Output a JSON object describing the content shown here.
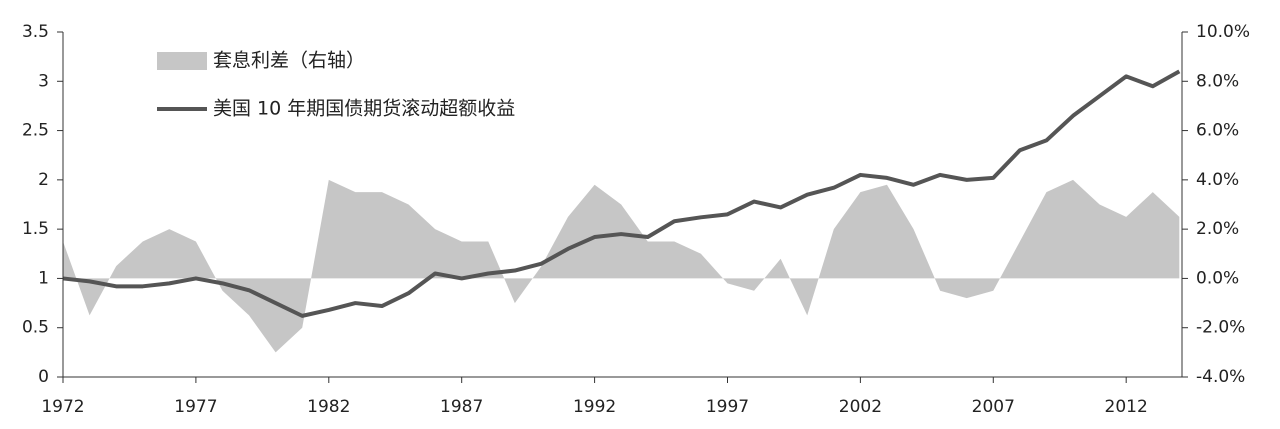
{
  "chart_data": {
    "type": "line",
    "x": [
      1972,
      1973,
      1974,
      1975,
      1976,
      1977,
      1978,
      1979,
      1980,
      1981,
      1982,
      1983,
      1984,
      1985,
      1986,
      1987,
      1988,
      1989,
      1990,
      1991,
      1992,
      1993,
      1994,
      1995,
      1996,
      1997,
      1998,
      1999,
      2000,
      2001,
      2002,
      2003,
      2004,
      2005,
      2006,
      2007,
      2008,
      2009,
      2010,
      2011,
      2012,
      2013,
      2014
    ],
    "xlim": [
      1972,
      2014.1
    ],
    "xticks": [
      1972,
      1977,
      1982,
      1987,
      1992,
      1997,
      2002,
      2007,
      2012
    ],
    "ylim": [
      0,
      3.5
    ],
    "yticks": [
      0,
      0.5,
      1,
      1.5,
      2,
      2.5,
      3,
      3.5
    ],
    "y2lim": [
      -4,
      10
    ],
    "y2ticks": [
      {
        "value": -4,
        "label": "-4.0%"
      },
      {
        "value": -2,
        "label": "-2.0%"
      },
      {
        "value": 0,
        "label": "0.0%"
      },
      {
        "value": 2,
        "label": "2.0%"
      },
      {
        "value": 4,
        "label": "4.0%"
      },
      {
        "value": 6,
        "label": "6.0%"
      },
      {
        "value": 8,
        "label": "8.0%"
      },
      {
        "value": 10,
        "label": "10.0%"
      }
    ],
    "series": [
      {
        "name": "套息利差（右轴）",
        "color": "#c6c6c6",
        "axis": "y2",
        "style": "area",
        "values": [
          1.5,
          -1.5,
          0.5,
          1.5,
          2.0,
          1.5,
          -0.5,
          -1.5,
          -3,
          -2,
          4,
          3.5,
          3.5,
          3,
          2,
          1.5,
          1.5,
          -1,
          0.5,
          2.5,
          3.8,
          3,
          1.5,
          1.5,
          1,
          -0.2,
          -0.5,
          0.8,
          -1.5,
          2,
          3.5,
          3.8,
          2,
          -0.5,
          -0.8,
          -0.5,
          1.5,
          3.5,
          4,
          3,
          2.5,
          3.5,
          2.5
        ]
      },
      {
        "name": "美国 10 年期国债期货滚动超额收益",
        "color": "#555555",
        "style": "line",
        "values": [
          1.0,
          0.97,
          0.92,
          0.92,
          0.95,
          1.0,
          0.95,
          0.88,
          0.75,
          0.62,
          0.68,
          0.75,
          0.72,
          0.85,
          1.05,
          1.0,
          1.05,
          1.08,
          1.15,
          1.3,
          1.42,
          1.45,
          1.42,
          1.58,
          1.62,
          1.65,
          1.78,
          1.72,
          1.85,
          1.92,
          2.05,
          2.02,
          1.95,
          2.05,
          2.0,
          2.02,
          2.3,
          2.4,
          2.65,
          2.85,
          3.05,
          2.95,
          3.1
        ]
      }
    ]
  }
}
